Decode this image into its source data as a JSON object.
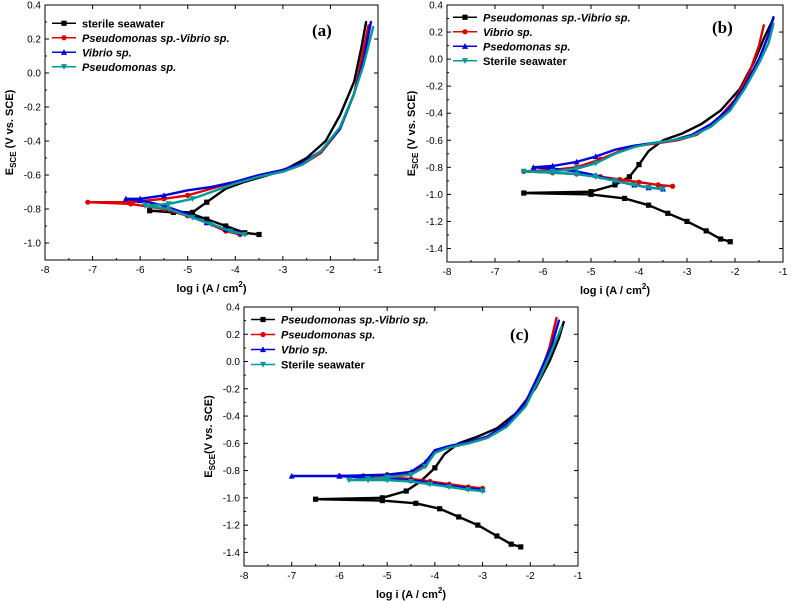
{
  "chart_data": [
    {
      "type": "line",
      "panel_label": "(a)",
      "xlabel": "log i (A / cm",
      "xlabel_sup": "2",
      "xlabel_end": ")",
      "ylabel_main": "E",
      "ylabel_sub": "SCE",
      "ylabel_rest": " (V vs. SCE)",
      "xlim": [
        -8,
        -1
      ],
      "ylim": [
        -1.1,
        0.4
      ],
      "xticks": [
        "-8",
        "-7",
        "-6",
        "-5",
        "-4",
        "-3",
        "-2",
        "-1"
      ],
      "yticks": [
        "0.4",
        "0.2",
        "0.0",
        "-0.2",
        "-0.4",
        "-0.6",
        "-0.8",
        "-1.0"
      ],
      "series": [
        {
          "name": "sterile seawater",
          "italic": false,
          "color": "#000000",
          "marker": "square",
          "x": [
            -3.5,
            -3.8,
            -4.2,
            -4.6,
            -4.9,
            -5.3,
            -5.8,
            -4.9,
            -4.6,
            -4.2,
            -3.8,
            -3.3,
            -2.9,
            -2.5,
            -2.1,
            -1.8,
            -1.5,
            -1.35,
            -1.25
          ],
          "y": [
            -0.95,
            -0.94,
            -0.9,
            -0.86,
            -0.83,
            -0.82,
            -0.81,
            -0.82,
            -0.76,
            -0.68,
            -0.64,
            -0.6,
            -0.56,
            -0.5,
            -0.4,
            -0.25,
            -0.05,
            0.15,
            0.3
          ]
        },
        {
          "name": "Pseudomonas sp.-Vibrio sp.",
          "italic": true,
          "color": "#e00000",
          "marker": "circle",
          "x": [
            -3.9,
            -4.2,
            -4.6,
            -5.0,
            -5.5,
            -6.2,
            -7.1,
            -6.2,
            -5.5,
            -5.0,
            -4.5,
            -4.0,
            -3.5,
            -3.0,
            -2.6,
            -2.2,
            -1.8,
            -1.5,
            -1.35,
            -1.2
          ],
          "y": [
            -0.95,
            -0.93,
            -0.88,
            -0.84,
            -0.8,
            -0.77,
            -0.76,
            -0.76,
            -0.74,
            -0.72,
            -0.68,
            -0.64,
            -0.61,
            -0.58,
            -0.54,
            -0.47,
            -0.33,
            -0.12,
            0.08,
            0.28
          ]
        },
        {
          "name": "Vibrio sp.",
          "italic": true,
          "color": "#0000dd",
          "marker": "triangle",
          "x": [
            -3.9,
            -4.2,
            -4.6,
            -5.0,
            -5.5,
            -6.0,
            -6.3,
            -6.0,
            -5.5,
            -5.0,
            -4.5,
            -4.0,
            -3.5,
            -3.0,
            -2.6,
            -2.2,
            -1.8,
            -1.5,
            -1.3,
            -1.15
          ],
          "y": [
            -0.94,
            -0.92,
            -0.88,
            -0.83,
            -0.78,
            -0.75,
            -0.74,
            -0.74,
            -0.72,
            -0.69,
            -0.67,
            -0.64,
            -0.6,
            -0.57,
            -0.53,
            -0.46,
            -0.33,
            -0.12,
            0.08,
            0.3
          ]
        },
        {
          "name": "Pseudomonas sp.",
          "italic": true,
          "color": "#009999",
          "marker": "down-triangle",
          "x": [
            -3.8,
            -4.1,
            -4.5,
            -4.9,
            -5.4,
            -5.9,
            -5.4,
            -4.9,
            -4.5,
            -4.0,
            -3.5,
            -3.0,
            -2.6,
            -2.2,
            -1.8,
            -1.5,
            -1.3,
            -1.1
          ],
          "y": [
            -0.95,
            -0.93,
            -0.89,
            -0.85,
            -0.8,
            -0.78,
            -0.77,
            -0.74,
            -0.7,
            -0.65,
            -0.61,
            -0.58,
            -0.54,
            -0.46,
            -0.32,
            -0.12,
            0.05,
            0.27
          ]
        }
      ]
    },
    {
      "type": "line",
      "panel_label": "(b)",
      "xlabel": "log i (A / cm",
      "xlabel_sup": "2",
      "xlabel_end": ")",
      "ylabel_main": "E",
      "ylabel_sub": "SCE",
      "ylabel_rest": " (V vs. SCE)",
      "xlim": [
        -8,
        -1
      ],
      "ylim": [
        -1.5,
        0.4
      ],
      "xticks": [
        "-8",
        "-7",
        "-6",
        "-5",
        "-4",
        "-3",
        "-2",
        "-1"
      ],
      "yticks": [
        "0.4",
        "0.2",
        "0.0",
        "-0.2",
        "-0.4",
        "-0.6",
        "-0.8",
        "-1.0",
        "-1.2",
        "-1.4"
      ],
      "series": [
        {
          "name": "Pseudomonas sp.-Vibrio sp.",
          "italic": true,
          "color": "#000000",
          "marker": "square",
          "x": [
            -2.1,
            -2.3,
            -2.6,
            -3.0,
            -3.4,
            -3.8,
            -4.3,
            -5.0,
            -6.4,
            -5.0,
            -4.5,
            -4.2,
            -4.0,
            -3.8,
            -3.5,
            -3.1,
            -2.7,
            -2.3,
            -1.9,
            -1.6,
            -1.4,
            -1.2
          ],
          "y": [
            -1.35,
            -1.33,
            -1.27,
            -1.2,
            -1.14,
            -1.08,
            -1.03,
            -1.0,
            -0.99,
            -0.98,
            -0.93,
            -0.87,
            -0.78,
            -0.68,
            -0.6,
            -0.55,
            -0.48,
            -0.38,
            -0.22,
            -0.02,
            0.15,
            0.3
          ]
        },
        {
          "name": "Vibrio sp.",
          "italic": true,
          "color": "#e00000",
          "marker": "circle",
          "x": [
            -3.3,
            -3.6,
            -4.0,
            -4.4,
            -4.8,
            -5.3,
            -5.8,
            -6.4,
            -5.8,
            -5.3,
            -4.8,
            -4.4,
            -4.0,
            -3.6,
            -3.2,
            -2.8,
            -2.4,
            -2.0,
            -1.7,
            -1.5,
            -1.4
          ],
          "y": [
            -0.94,
            -0.93,
            -0.91,
            -0.89,
            -0.87,
            -0.85,
            -0.84,
            -0.83,
            -0.82,
            -0.8,
            -0.74,
            -0.68,
            -0.64,
            -0.62,
            -0.6,
            -0.56,
            -0.46,
            -0.3,
            -0.1,
            0.1,
            0.25
          ]
        },
        {
          "name": "Psedomonas sp.",
          "italic": true,
          "color": "#0000dd",
          "marker": "triangle",
          "x": [
            -3.5,
            -3.8,
            -4.1,
            -4.5,
            -4.9,
            -5.3,
            -5.8,
            -6.2,
            -5.8,
            -5.3,
            -4.9,
            -4.5,
            -4.1,
            -3.7,
            -3.3,
            -2.9,
            -2.5,
            -2.1,
            -1.8,
            -1.5,
            -1.3,
            -1.2
          ],
          "y": [
            -0.96,
            -0.95,
            -0.93,
            -0.9,
            -0.86,
            -0.83,
            -0.81,
            -0.8,
            -0.79,
            -0.76,
            -0.72,
            -0.67,
            -0.64,
            -0.62,
            -0.6,
            -0.56,
            -0.48,
            -0.36,
            -0.2,
            0.0,
            0.18,
            0.31
          ]
        },
        {
          "name": "Sterile seawater",
          "italic": false,
          "color": "#009999",
          "marker": "down-triangle",
          "x": [
            -3.5,
            -3.8,
            -4.1,
            -4.5,
            -4.9,
            -5.3,
            -5.8,
            -6.4,
            -5.8,
            -5.3,
            -4.9,
            -4.5,
            -4.1,
            -3.7,
            -3.3,
            -2.9,
            -2.5,
            -2.1,
            -1.8,
            -1.5,
            -1.3,
            -1.2
          ],
          "y": [
            -0.96,
            -0.95,
            -0.93,
            -0.9,
            -0.87,
            -0.85,
            -0.84,
            -0.83,
            -0.83,
            -0.81,
            -0.77,
            -0.7,
            -0.65,
            -0.62,
            -0.6,
            -0.57,
            -0.5,
            -0.38,
            -0.22,
            -0.03,
            0.12,
            0.26
          ]
        }
      ]
    },
    {
      "type": "line",
      "panel_label": "(c)",
      "xlabel": "log i (A / cm",
      "xlabel_sup": "2",
      "xlabel_end": ")",
      "ylabel_main": "E",
      "ylabel_sub": "SCE",
      "ylabel_rest": "(V vs. SCE)",
      "xlim": [
        -8,
        -1
      ],
      "ylim": [
        -1.5,
        0.4
      ],
      "xticks": [
        "-8",
        "-7",
        "-6",
        "-5",
        "-4",
        "-3",
        "-2",
        "-1"
      ],
      "yticks": [
        "0.4",
        "0.2",
        "0.0",
        "-0.2",
        "-0.4",
        "-0.6",
        "-0.8",
        "-1.0",
        "-1.2",
        "-1.4"
      ],
      "series": [
        {
          "name": "Pseudomonas sp.-Vibrio sp.",
          "italic": true,
          "color": "#000000",
          "marker": "square",
          "x": [
            -2.2,
            -2.4,
            -2.7,
            -3.1,
            -3.5,
            -3.9,
            -4.4,
            -5.1,
            -6.5,
            -5.1,
            -4.6,
            -4.3,
            -4.0,
            -3.8,
            -3.5,
            -3.1,
            -2.7,
            -2.3,
            -1.9,
            -1.6,
            -1.4,
            -1.3
          ],
          "y": [
            -1.36,
            -1.34,
            -1.28,
            -1.2,
            -1.14,
            -1.08,
            -1.04,
            -1.02,
            -1.01,
            -1.0,
            -0.95,
            -0.88,
            -0.78,
            -0.68,
            -0.6,
            -0.55,
            -0.49,
            -0.38,
            -0.2,
            0.0,
            0.17,
            0.29
          ]
        },
        {
          "name": "Pseudomonas sp.",
          "italic": true,
          "color": "#e00000",
          "marker": "circle",
          "x": [
            -3.0,
            -3.3,
            -3.7,
            -4.1,
            -4.5,
            -5.0,
            -5.5,
            -6.0,
            -5.5,
            -5.0,
            -4.5,
            -4.2,
            -4.0,
            -3.7,
            -3.3,
            -2.9,
            -2.5,
            -2.1,
            -1.8,
            -1.6,
            -1.45
          ],
          "y": [
            -0.93,
            -0.92,
            -0.9,
            -0.88,
            -0.86,
            -0.85,
            -0.84,
            -0.84,
            -0.84,
            -0.83,
            -0.82,
            -0.76,
            -0.66,
            -0.63,
            -0.6,
            -0.56,
            -0.47,
            -0.32,
            -0.1,
            0.1,
            0.32
          ]
        },
        {
          "name": "Vbrio sp.",
          "italic": true,
          "color": "#0000dd",
          "marker": "triangle",
          "x": [
            -3.0,
            -3.3,
            -3.7,
            -4.1,
            -4.5,
            -5.0,
            -5.5,
            -6.0,
            -7.0,
            -6.0,
            -5.0,
            -4.5,
            -4.2,
            -4.0,
            -3.7,
            -3.3,
            -2.9,
            -2.5,
            -2.1,
            -1.8,
            -1.55,
            -1.4
          ],
          "y": [
            -0.94,
            -0.93,
            -0.91,
            -0.89,
            -0.87,
            -0.86,
            -0.85,
            -0.84,
            -0.84,
            -0.84,
            -0.83,
            -0.81,
            -0.74,
            -0.65,
            -0.62,
            -0.59,
            -0.55,
            -0.46,
            -0.3,
            -0.08,
            0.12,
            0.3
          ]
        },
        {
          "name": "Sterile seawater",
          "italic": false,
          "color": "#009999",
          "marker": "down-triangle",
          "x": [
            -3.0,
            -3.3,
            -3.7,
            -4.1,
            -4.5,
            -5.0,
            -5.4,
            -5.8,
            -5.4,
            -5.0,
            -4.5,
            -4.2,
            -4.0,
            -3.7,
            -3.3,
            -2.9,
            -2.5,
            -2.1,
            -1.8,
            -1.55,
            -1.35
          ],
          "y": [
            -0.95,
            -0.94,
            -0.92,
            -0.9,
            -0.88,
            -0.87,
            -0.87,
            -0.87,
            -0.86,
            -0.85,
            -0.83,
            -0.77,
            -0.67,
            -0.63,
            -0.6,
            -0.56,
            -0.48,
            -0.33,
            -0.12,
            0.08,
            0.25
          ]
        }
      ]
    }
  ]
}
